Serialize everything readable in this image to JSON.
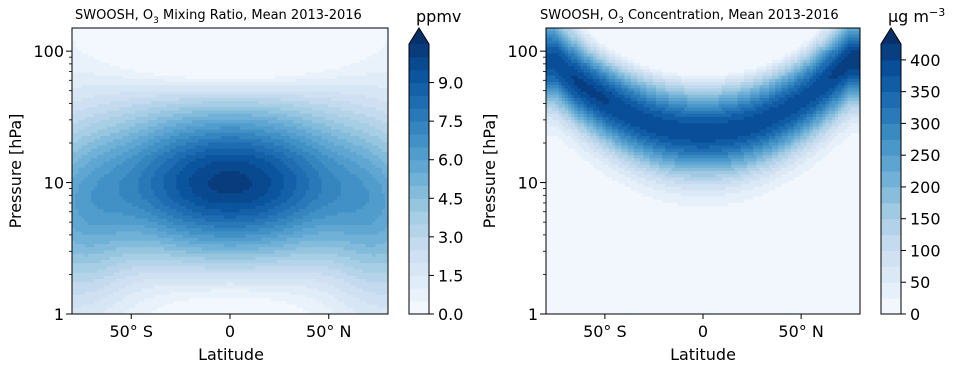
{
  "chart_data": [
    {
      "type": "contour",
      "title_prefix": "SWOOSH, O",
      "title_sub": "3",
      "title_suffix": " Mixing Ratio, Mean 2013-2016",
      "xlabel": "Latitude",
      "ylabel": "Pressure [hPa]",
      "xlim": [
        -80,
        80
      ],
      "ylim": [
        150,
        1
      ],
      "yscale": "log",
      "y_inverted": true,
      "x_ticks": [
        -50,
        0,
        50
      ],
      "x_tick_labels": [
        "50° S",
        "0",
        "50° N"
      ],
      "y_ticks": [
        1,
        10,
        100
      ],
      "y_tick_labels": [
        "1",
        "10",
        "100"
      ],
      "colorbar": {
        "unit": "ppmv",
        "range": [
          0,
          10.5
        ],
        "levels": 21,
        "ticks": [
          0.0,
          1.5,
          3.0,
          4.5,
          6.0,
          7.5,
          9.0
        ],
        "tick_labels": [
          "0.0",
          "1.5",
          "3.0",
          "4.5",
          "6.0",
          "7.5",
          "9.0"
        ],
        "extend": "max"
      },
      "field": {
        "peak_value": 10.2,
        "peak_location": {
          "latitude": 0,
          "pressure_hPa": 10
        },
        "feature": "tropical maximum near 10 hPa, minimum in lower tropical stratosphere near 100 hPa"
      }
    },
    {
      "type": "contour",
      "title_prefix": "SWOOSH, O",
      "title_sub": "3",
      "title_suffix": " Concentration, Mean 2013-2016",
      "xlabel": "Latitude",
      "ylabel": "Pressure [hPa]",
      "xlim": [
        -80,
        80
      ],
      "ylim": [
        150,
        1
      ],
      "yscale": "log",
      "y_inverted": true,
      "x_ticks": [
        -50,
        0,
        50
      ],
      "x_tick_labels": [
        "50° S",
        "0",
        "50° N"
      ],
      "y_ticks": [
        1,
        10,
        100
      ],
      "y_tick_labels": [
        "1",
        "10",
        "100"
      ],
      "colorbar": {
        "unit_prefix": "μg m",
        "unit_sup": "−3",
        "range": [
          0,
          425
        ],
        "levels": 17,
        "ticks": [
          0,
          50,
          100,
          150,
          200,
          250,
          300,
          350,
          400
        ],
        "tick_labels": [
          "0",
          "50",
          "100",
          "150",
          "200",
          "250",
          "300",
          "350",
          "400"
        ],
        "extend": "max"
      },
      "field": {
        "peak_value": 430,
        "peak_location": {
          "latitude": 75,
          "pressure_hPa": 80
        },
        "feature": "arched ozone layer: maximum near 25 hPa in tropics descending toward ~70 hPa at high latitudes; low values in tropical lower stratosphere"
      }
    }
  ]
}
